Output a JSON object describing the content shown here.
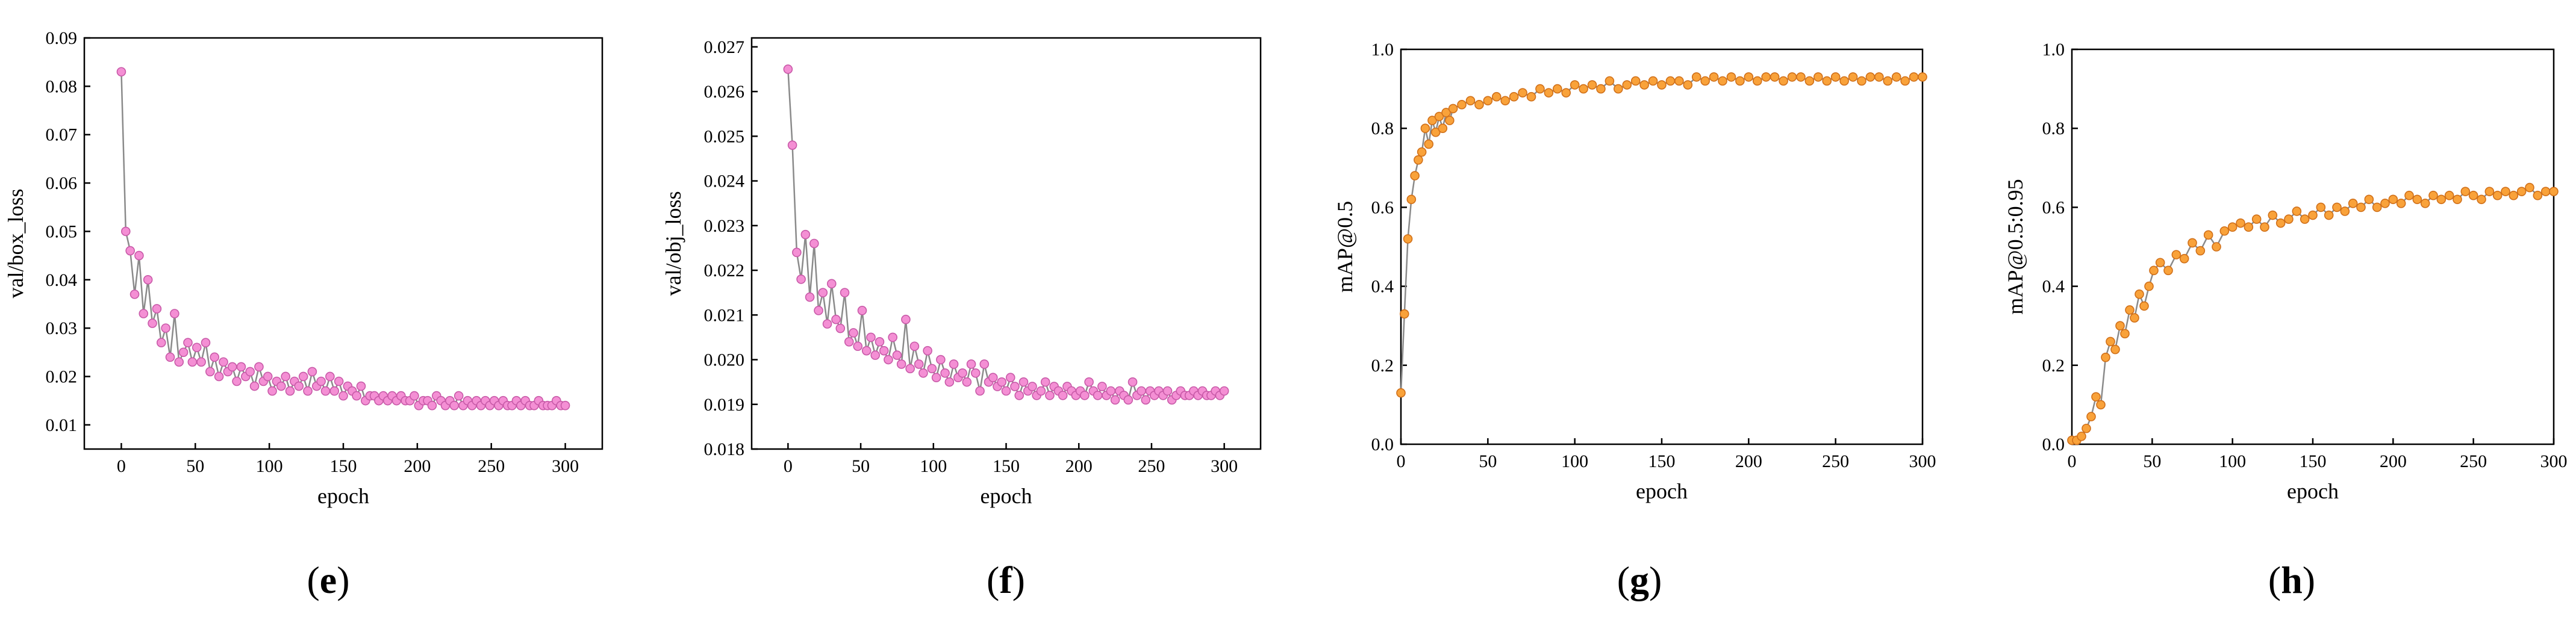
{
  "chart_data": [
    {
      "type": "line",
      "panel_label": "e",
      "xlabel": "epoch",
      "ylabel": "val/box_loss",
      "xlim": [
        -25,
        325
      ],
      "ylim": [
        0.005,
        0.09
      ],
      "xticks": [
        0,
        50,
        100,
        150,
        200,
        250,
        300
      ],
      "xtick_labels": [
        "0",
        "50",
        "100",
        "150",
        "200",
        "250",
        "300"
      ],
      "yticks": [
        0.01,
        0.02,
        0.03,
        0.04,
        0.05,
        0.06,
        0.07,
        0.08,
        0.09
      ],
      "ytick_labels": [
        "0.01",
        "0.02",
        "0.03",
        "0.04",
        "0.05",
        "0.06",
        "0.07",
        "0.08",
        "0.09"
      ],
      "marker_color": "#f48fd4",
      "marker_edge": "#c85aa8",
      "line_color": "#8a8a8a",
      "series": [
        {
          "name": "val/box_loss",
          "x": [
            0,
            3,
            6,
            9,
            12,
            15,
            18,
            21,
            24,
            27,
            30,
            33,
            36,
            39,
            42,
            45,
            48,
            51,
            54,
            57,
            60,
            63,
            66,
            69,
            72,
            75,
            78,
            81,
            84,
            87,
            90,
            93,
            96,
            99,
            102,
            105,
            108,
            111,
            114,
            117,
            120,
            123,
            126,
            129,
            132,
            135,
            138,
            141,
            144,
            147,
            150,
            153,
            156,
            159,
            162,
            165,
            168,
            171,
            174,
            177,
            180,
            183,
            186,
            189,
            192,
            195,
            198,
            201,
            204,
            207,
            210,
            213,
            216,
            219,
            222,
            225,
            228,
            231,
            234,
            237,
            240,
            243,
            246,
            249,
            252,
            255,
            258,
            261,
            264,
            267,
            270,
            273,
            276,
            279,
            282,
            285,
            288,
            291,
            294,
            297,
            300
          ],
          "values": [
            0.083,
            0.05,
            0.046,
            0.037,
            0.045,
            0.033,
            0.04,
            0.031,
            0.034,
            0.027,
            0.03,
            0.024,
            0.033,
            0.023,
            0.025,
            0.027,
            0.023,
            0.026,
            0.023,
            0.027,
            0.021,
            0.024,
            0.02,
            0.023,
            0.021,
            0.022,
            0.019,
            0.022,
            0.02,
            0.021,
            0.018,
            0.022,
            0.019,
            0.02,
            0.017,
            0.019,
            0.018,
            0.02,
            0.017,
            0.019,
            0.018,
            0.02,
            0.017,
            0.021,
            0.018,
            0.019,
            0.017,
            0.02,
            0.017,
            0.019,
            0.016,
            0.018,
            0.017,
            0.016,
            0.018,
            0.015,
            0.016,
            0.016,
            0.015,
            0.016,
            0.015,
            0.016,
            0.015,
            0.016,
            0.015,
            0.015,
            0.016,
            0.014,
            0.015,
            0.015,
            0.014,
            0.016,
            0.015,
            0.014,
            0.015,
            0.014,
            0.016,
            0.014,
            0.015,
            0.014,
            0.015,
            0.014,
            0.015,
            0.014,
            0.015,
            0.014,
            0.015,
            0.014,
            0.014,
            0.015,
            0.014,
            0.015,
            0.014,
            0.014,
            0.015,
            0.014,
            0.014,
            0.014,
            0.015,
            0.014,
            0.014
          ]
        }
      ]
    },
    {
      "type": "line",
      "panel_label": "f",
      "xlabel": "epoch",
      "ylabel": "val/obj_loss",
      "xlim": [
        -25,
        325
      ],
      "ylim": [
        0.018,
        0.0272
      ],
      "xticks": [
        0,
        50,
        100,
        150,
        200,
        250,
        300
      ],
      "xtick_labels": [
        "0",
        "50",
        "100",
        "150",
        "200",
        "250",
        "300"
      ],
      "yticks": [
        0.018,
        0.019,
        0.02,
        0.021,
        0.022,
        0.023,
        0.024,
        0.025,
        0.026,
        0.027
      ],
      "ytick_labels": [
        "0.018",
        "0.019",
        "0.020",
        "0.021",
        "0.022",
        "0.023",
        "0.024",
        "0.025",
        "0.026",
        "0.027"
      ],
      "marker_color": "#f48fd4",
      "marker_edge": "#c85aa8",
      "line_color": "#8a8a8a",
      "series": [
        {
          "name": "val/obj_loss",
          "x": [
            0,
            3,
            6,
            9,
            12,
            15,
            18,
            21,
            24,
            27,
            30,
            33,
            36,
            39,
            42,
            45,
            48,
            51,
            54,
            57,
            60,
            63,
            66,
            69,
            72,
            75,
            78,
            81,
            84,
            87,
            90,
            93,
            96,
            99,
            102,
            105,
            108,
            111,
            114,
            117,
            120,
            123,
            126,
            129,
            132,
            135,
            138,
            141,
            144,
            147,
            150,
            153,
            156,
            159,
            162,
            165,
            168,
            171,
            174,
            177,
            180,
            183,
            186,
            189,
            192,
            195,
            198,
            201,
            204,
            207,
            210,
            213,
            216,
            219,
            222,
            225,
            228,
            231,
            234,
            237,
            240,
            243,
            246,
            249,
            252,
            255,
            258,
            261,
            264,
            267,
            270,
            273,
            276,
            279,
            282,
            285,
            288,
            291,
            294,
            297,
            300
          ],
          "values": [
            0.0265,
            0.0248,
            0.0224,
            0.0218,
            0.0228,
            0.0214,
            0.0226,
            0.0211,
            0.0215,
            0.0208,
            0.0217,
            0.0209,
            0.0207,
            0.0215,
            0.0204,
            0.0206,
            0.0203,
            0.0211,
            0.0202,
            0.0205,
            0.0201,
            0.0204,
            0.0202,
            0.02,
            0.0205,
            0.0201,
            0.0199,
            0.0209,
            0.0198,
            0.0203,
            0.0199,
            0.0197,
            0.0202,
            0.0198,
            0.0196,
            0.02,
            0.0197,
            0.0195,
            0.0199,
            0.0196,
            0.0197,
            0.0195,
            0.0199,
            0.0197,
            0.0193,
            0.0199,
            0.0195,
            0.0196,
            0.0194,
            0.0195,
            0.0193,
            0.0196,
            0.0194,
            0.0192,
            0.0195,
            0.0193,
            0.0194,
            0.0192,
            0.0193,
            0.0195,
            0.0192,
            0.0194,
            0.0193,
            0.0192,
            0.0194,
            0.0193,
            0.0192,
            0.0193,
            0.0192,
            0.0195,
            0.0193,
            0.0192,
            0.0194,
            0.0192,
            0.0193,
            0.0191,
            0.0193,
            0.0192,
            0.0191,
            0.0195,
            0.0192,
            0.0193,
            0.0191,
            0.0193,
            0.0192,
            0.0193,
            0.0192,
            0.0193,
            0.0191,
            0.0192,
            0.0193,
            0.0192,
            0.0192,
            0.0193,
            0.0192,
            0.0193,
            0.0192,
            0.0192,
            0.0193,
            0.0192,
            0.0193
          ]
        }
      ]
    },
    {
      "type": "line",
      "panel_label": "g",
      "xlabel": "epoch",
      "ylabel": "mAP@0.5",
      "xlim": [
        0,
        300
      ],
      "ylim": [
        0.0,
        1.0
      ],
      "xticks": [
        0,
        50,
        100,
        150,
        200,
        250,
        300
      ],
      "xtick_labels": [
        "0",
        "50",
        "100",
        "150",
        "200",
        "250",
        "300"
      ],
      "yticks": [
        0.0,
        0.2,
        0.4,
        0.6,
        0.8,
        1.0
      ],
      "ytick_labels": [
        "0.0",
        "0.2",
        "0.4",
        "0.6",
        "0.8",
        "1.0"
      ],
      "marker_color": "#f9a23a",
      "marker_edge": "#d0701a",
      "line_color": "#8a8a8a",
      "series": [
        {
          "name": "mAP@0.5",
          "x": [
            0,
            2,
            4,
            6,
            8,
            10,
            12,
            14,
            16,
            18,
            20,
            22,
            24,
            26,
            28,
            30,
            35,
            40,
            45,
            50,
            55,
            60,
            65,
            70,
            75,
            80,
            85,
            90,
            95,
            100,
            105,
            110,
            115,
            120,
            125,
            130,
            135,
            140,
            145,
            150,
            155,
            160,
            165,
            170,
            175,
            180,
            185,
            190,
            195,
            200,
            205,
            210,
            215,
            220,
            225,
            230,
            235,
            240,
            245,
            250,
            255,
            260,
            265,
            270,
            275,
            280,
            285,
            290,
            295,
            300
          ],
          "values": [
            0.13,
            0.33,
            0.52,
            0.62,
            0.68,
            0.72,
            0.74,
            0.8,
            0.76,
            0.82,
            0.79,
            0.83,
            0.8,
            0.84,
            0.82,
            0.85,
            0.86,
            0.87,
            0.86,
            0.87,
            0.88,
            0.87,
            0.88,
            0.89,
            0.88,
            0.9,
            0.89,
            0.9,
            0.89,
            0.91,
            0.9,
            0.91,
            0.9,
            0.92,
            0.9,
            0.91,
            0.92,
            0.91,
            0.92,
            0.91,
            0.92,
            0.92,
            0.91,
            0.93,
            0.92,
            0.93,
            0.92,
            0.93,
            0.92,
            0.93,
            0.92,
            0.93,
            0.93,
            0.92,
            0.93,
            0.93,
            0.92,
            0.93,
            0.92,
            0.93,
            0.92,
            0.93,
            0.92,
            0.93,
            0.93,
            0.92,
            0.93,
            0.92,
            0.93,
            0.93
          ]
        }
      ]
    },
    {
      "type": "line",
      "panel_label": "h",
      "xlabel": "epoch",
      "ylabel": "mAP@0.5:0.95",
      "xlim": [
        0,
        300
      ],
      "ylim": [
        0.0,
        1.0
      ],
      "xticks": [
        0,
        50,
        100,
        150,
        200,
        250,
        300
      ],
      "xtick_labels": [
        "0",
        "50",
        "100",
        "150",
        "200",
        "250",
        "300"
      ],
      "yticks": [
        0.0,
        0.2,
        0.4,
        0.6,
        0.8,
        1.0
      ],
      "ytick_labels": [
        "0.0",
        "0.2",
        "0.4",
        "0.6",
        "0.8",
        "1.0"
      ],
      "marker_color": "#f9a23a",
      "marker_edge": "#d0701a",
      "line_color": "#8a8a8a",
      "series": [
        {
          "name": "mAP@0.5:0.95",
          "x": [
            0,
            3,
            6,
            9,
            12,
            15,
            18,
            21,
            24,
            27,
            30,
            33,
            36,
            39,
            42,
            45,
            48,
            51,
            55,
            60,
            65,
            70,
            75,
            80,
            85,
            90,
            95,
            100,
            105,
            110,
            115,
            120,
            125,
            130,
            135,
            140,
            145,
            150,
            155,
            160,
            165,
            170,
            175,
            180,
            185,
            190,
            195,
            200,
            205,
            210,
            215,
            220,
            225,
            230,
            235,
            240,
            245,
            250,
            255,
            260,
            265,
            270,
            275,
            280,
            285,
            290,
            295,
            300
          ],
          "values": [
            0.01,
            0.01,
            0.02,
            0.04,
            0.07,
            0.12,
            0.1,
            0.22,
            0.26,
            0.24,
            0.3,
            0.28,
            0.34,
            0.32,
            0.38,
            0.35,
            0.4,
            0.44,
            0.46,
            0.44,
            0.48,
            0.47,
            0.51,
            0.49,
            0.53,
            0.5,
            0.54,
            0.55,
            0.56,
            0.55,
            0.57,
            0.55,
            0.58,
            0.56,
            0.57,
            0.59,
            0.57,
            0.58,
            0.6,
            0.58,
            0.6,
            0.59,
            0.61,
            0.6,
            0.62,
            0.6,
            0.61,
            0.62,
            0.61,
            0.63,
            0.62,
            0.61,
            0.63,
            0.62,
            0.63,
            0.62,
            0.64,
            0.63,
            0.62,
            0.64,
            0.63,
            0.64,
            0.63,
            0.64,
            0.65,
            0.63,
            0.64,
            0.64
          ]
        }
      ]
    }
  ]
}
